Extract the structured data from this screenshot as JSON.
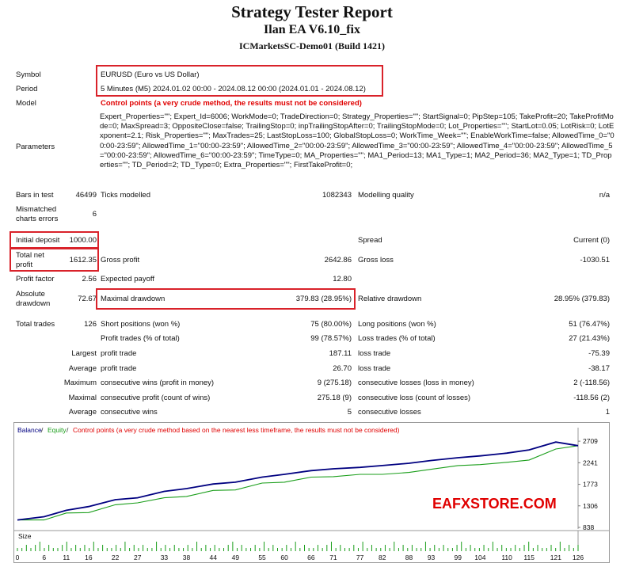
{
  "header": {
    "title": "Strategy Tester Report",
    "ea_name": "Ilan EA V6.10_fix",
    "server": "ICMarketsSC-Demo01 (Build 1421)"
  },
  "info": {
    "symbol_label": "Symbol",
    "symbol_value": "EURUSD (Euro vs US Dollar)",
    "period_label": "Period",
    "period_value": "5 Minutes (M5) 2024.01.02 00:00 - 2024.08.12 00:00 (2024.01.01 - 2024.08.12)",
    "model_label": "Model",
    "model_value": "Control points (a very crude method, the results must not be considered)",
    "parameters_label": "Parameters",
    "parameters_value": "Expert_Properties=\"\"; Expert_Id=6006; WorkMode=0; TradeDirection=0; Strategy_Properties=\"\"; StartSignal=0; PipStep=105; TakeProfit=20; TakeProfitMode=0; MaxSpread=3; OppositeClose=false; TrailingStop=0; inpTrailingStopAfter=0; TrailingStopMode=0; Lot_Properties=\"\"; StartLot=0.05; LotRisk=0; LotExponent=2.1; Risk_Properties=\"\"; MaxTrades=25; LastStopLoss=100; GlobalStopLoss=0; WorkTime_Week=\"\"; EnableWorkTime=false; AllowedTime_0=\"00:00-23:59\"; AllowedTime_1=\"00:00-23:59\"; AllowedTime_2=\"00:00-23:59\"; AllowedTime_3=\"00:00-23:59\"; AllowedTime_4=\"00:00-23:59\"; AllowedTime_5=\"00:00-23:59\"; AllowedTime_6=\"00:00-23:59\"; TimeType=0; MA_Properties=\"\"; MA1_Period=13; MA1_Type=1; MA2_Period=36; MA2_Type=1; TD_Properties=\"\"; TD_Period=2; TD_Type=0; Extra_Properties=\"\"; FirstTakeProfit=0;"
  },
  "stats": {
    "bars_label": "Bars in test",
    "bars_value": "46499",
    "ticks_label": "Ticks modelled",
    "ticks_value": "1082343",
    "quality_label": "Modelling quality",
    "quality_value": "n/a",
    "mismatch_label1": "Mismatched",
    "mismatch_label2": "charts errors",
    "mismatch_value": "6",
    "deposit_label": "Initial deposit",
    "deposit_value": "1000.00",
    "spread_label": "Spread",
    "spread_value": "Current (0)",
    "netprofit_label1": "Total net",
    "netprofit_label2": "profit",
    "netprofit_value": "1612.35",
    "grossprofit_label": "Gross profit",
    "grossprofit_value": "2642.86",
    "grossloss_label": "Gross loss",
    "grossloss_value": "-1030.51",
    "pf_label": "Profit factor",
    "pf_value": "2.56",
    "payoff_label": "Expected payoff",
    "payoff_value": "12.80",
    "absdd_label1": "Absolute",
    "absdd_label2": "drawdown",
    "absdd_value": "72.67",
    "maxdd_label": "Maximal drawdown",
    "maxdd_value": "379.83 (28.95%)",
    "reldd_label": "Relative drawdown",
    "reldd_value": "28.95% (379.83)",
    "trades_label": "Total trades",
    "trades_value": "126",
    "short_label": "Short positions (won %)",
    "short_value": "75 (80.00%)",
    "long_label": "Long positions (won %)",
    "long_value": "51 (76.47%)",
    "pt_label": "Profit trades (% of total)",
    "pt_value": "99 (78.57%)",
    "lt_label": "Loss trades (% of total)",
    "lt_value": "27 (21.43%)",
    "largest_label": "Largest",
    "largest_pt_label": "profit trade",
    "largest_pt_value": "187.11",
    "largest_lt_label": "loss trade",
    "largest_lt_value": "-75.39",
    "average_label": "Average",
    "average_pt_label": "profit trade",
    "average_pt_value": "26.70",
    "average_lt_label": "loss trade",
    "average_lt_value": "-38.17",
    "maximum_label": "Maximum",
    "max_cw_label": "consecutive wins (profit in money)",
    "max_cw_value": "9 (275.18)",
    "max_cl_label": "consecutive losses (loss in money)",
    "max_cl_value": "2 (-118.56)",
    "maximal_label": "Maximal",
    "maximal_cp_label": "consecutive profit (count of wins)",
    "maximal_cp_value": "275.18 (9)",
    "maximal_cl_label": "consecutive loss (count of losses)",
    "maximal_cl_value": "-118.56 (2)",
    "avg2_label": "Average",
    "avg_cw_label": "consecutive wins",
    "avg_cw_value": "5",
    "avg_cl_label": "consecutive losses",
    "avg_cl_value": "1"
  },
  "chart_legend": {
    "balance": "Balance",
    "sep1": " / ",
    "equity": "Equity",
    "sep2": " / ",
    "note": "Control points (a very crude method based on the nearest less timeframe, the results must not be considered)"
  },
  "watermark": "EAFXSTORE.COM",
  "colors": {
    "balance": "#000080",
    "equity": "#1a9e1a",
    "highlight": "#d9222a",
    "warning": "#e00000",
    "size_bars": "#1a9e1a"
  },
  "chart_data": {
    "type": "line",
    "ylim": [
      838,
      2900
    ],
    "y_ticks": [
      2709,
      2241,
      1773,
      1306,
      838
    ],
    "x_ticks": [
      "0",
      "6",
      "11",
      "16",
      "22",
      "27",
      "33",
      "38",
      "44",
      "49",
      "55",
      "60",
      "66",
      "71",
      "77",
      "82",
      "88",
      "93",
      "99",
      "104",
      "110",
      "115",
      "121",
      "126"
    ],
    "size_label": "Size",
    "series": [
      {
        "name": "Balance",
        "x": [
          0,
          6,
          11,
          16,
          22,
          27,
          33,
          38,
          44,
          49,
          55,
          60,
          66,
          71,
          77,
          82,
          88,
          93,
          99,
          104,
          110,
          115,
          121,
          126
        ],
        "values": [
          1000,
          1070,
          1210,
          1290,
          1440,
          1480,
          1620,
          1680,
          1780,
          1820,
          1930,
          1990,
          2070,
          2110,
          2140,
          2180,
          2230,
          2290,
          2350,
          2390,
          2450,
          2520,
          2690,
          2612
        ]
      },
      {
        "name": "Equity",
        "x": [
          0,
          6,
          11,
          16,
          22,
          27,
          33,
          38,
          44,
          49,
          55,
          60,
          66,
          71,
          77,
          82,
          88,
          93,
          99,
          104,
          110,
          115,
          121,
          126
        ],
        "values": [
          1000,
          1000,
          1150,
          1160,
          1330,
          1370,
          1480,
          1510,
          1640,
          1650,
          1800,
          1820,
          1930,
          1940,
          1990,
          1990,
          2030,
          2100,
          2180,
          2200,
          2250,
          2300,
          2540,
          2612
        ]
      }
    ],
    "size_values": [
      1,
      1,
      2,
      1,
      2,
      3,
      1,
      2,
      1,
      1,
      2,
      3,
      1,
      2,
      1,
      2,
      1,
      3,
      1,
      2,
      1,
      1,
      2,
      1,
      3,
      1,
      2,
      1,
      2,
      1,
      1,
      3,
      1,
      2,
      1,
      2,
      1,
      1,
      2,
      1,
      3,
      1,
      2,
      1,
      2,
      1,
      1,
      2,
      3,
      1,
      2,
      1,
      1,
      2,
      1,
      3,
      1,
      2,
      1,
      1,
      2,
      1,
      3,
      1,
      2,
      1,
      1,
      2,
      1,
      2,
      3,
      1,
      2,
      1,
      1,
      2,
      1,
      3,
      1,
      2,
      1,
      1,
      2,
      1,
      3,
      1,
      2,
      1,
      2,
      1,
      1,
      3,
      1,
      2,
      1,
      2,
      1,
      1,
      2,
      3,
      1,
      2,
      1,
      1,
      2,
      1,
      3,
      1,
      2,
      1,
      1,
      2,
      1,
      2,
      3,
      1,
      2,
      1,
      1,
      2,
      1,
      3,
      1,
      2,
      1,
      2
    ]
  }
}
